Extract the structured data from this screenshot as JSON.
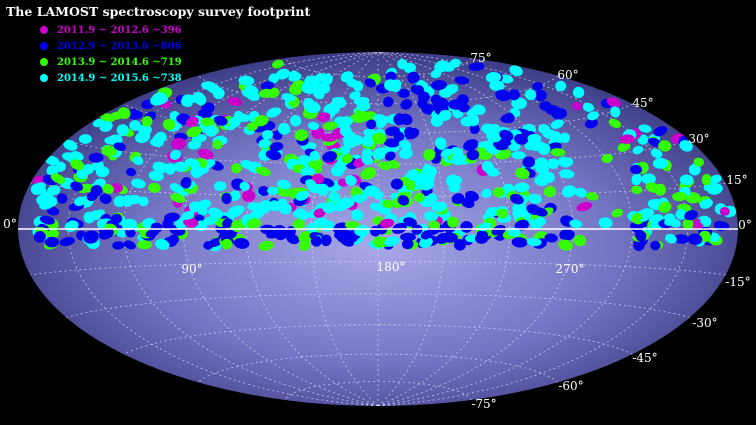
{
  "title": "The LAMOST spectroscopy survey footprint",
  "legend": [
    {
      "label": "2011.9 ~ 2012.6  ~396",
      "color": "#cc00cc"
    },
    {
      "label": "2012.9 ~ 2013.6  ~806",
      "color": "#0000ee"
    },
    {
      "label": "2013.9 ~ 2014.6  ~719",
      "color": "#33ff00"
    },
    {
      "label": "2014.9 ~ 2015.6  ~738",
      "color": "#00ffff"
    }
  ],
  "ra_labels": [
    "90°",
    "180°",
    "270°"
  ],
  "dec_labels_right": [
    "75°",
    "60°",
    "45°",
    "30°",
    "15°",
    "0°",
    "-15°",
    "-30°",
    "-45°",
    "-60°",
    "-75°"
  ],
  "dec_label_left": "0°",
  "colors": {
    "background": "#000000",
    "sky_center": "#b6b6ee",
    "sky_edge": "#3a3a80",
    "equator": "#ffffff",
    "grid": "#e0e0ff"
  }
}
